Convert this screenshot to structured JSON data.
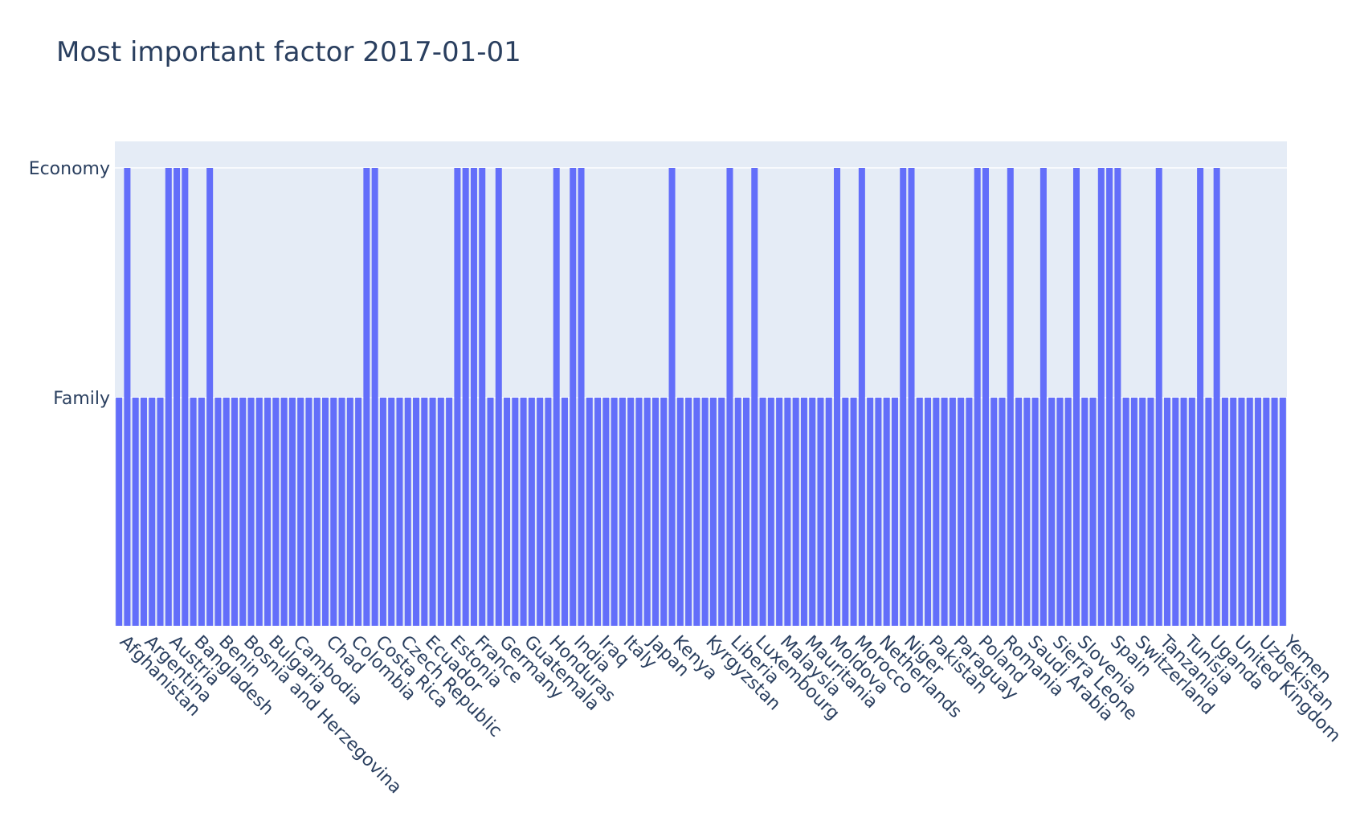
{
  "chart_data": {
    "type": "bar",
    "title": "Most important factor 2017-01-01",
    "xlabel": "",
    "ylabel": "",
    "bar_color": "#636efa",
    "plot_bg": "#e5ecf6",
    "grid": true,
    "y_categories": [
      "Family",
      "Economy"
    ],
    "x_tick_labels": [
      "Afghanistan",
      "Argentina",
      "Austria",
      "Bangladesh",
      "Benin",
      "Bosnia and Herzegovina",
      "Bulgaria",
      "Cambodia",
      "Chad",
      "Colombia",
      "Costa Rica",
      "Czech Republic",
      "Ecuador",
      "Estonia",
      "France",
      "Germany",
      "Guatemala",
      "Honduras",
      "India",
      "Iraq",
      "Italy",
      "Japan",
      "Kenya",
      "Kyrgyzstan",
      "Liberia",
      "Luxembourg",
      "Malaysia",
      "Mauritania",
      "Moldova",
      "Morocco",
      "Netherlands",
      "Niger",
      "Pakistan",
      "Paraguay",
      "Poland",
      "Romania",
      "Saudi Arabia",
      "Sierra Leone",
      "Slovenia",
      "Spain",
      "Switzerland",
      "Tanzania",
      "Tunisia",
      "Uganda",
      "United Kingdom",
      "Uzbekistan",
      "Yemen"
    ],
    "values": [
      "Family",
      "Economy",
      "Family",
      "Family",
      "Family",
      "Family",
      "Economy",
      "Economy",
      "Economy",
      "Family",
      "Family",
      "Economy",
      "Family",
      "Family",
      "Family",
      "Family",
      "Family",
      "Family",
      "Family",
      "Family",
      "Family",
      "Family",
      "Family",
      "Family",
      "Family",
      "Family",
      "Family",
      "Family",
      "Family",
      "Family",
      "Economy",
      "Economy",
      "Family",
      "Family",
      "Family",
      "Family",
      "Family",
      "Family",
      "Family",
      "Family",
      "Family",
      "Economy",
      "Economy",
      "Economy",
      "Economy",
      "Family",
      "Economy",
      "Family",
      "Family",
      "Family",
      "Family",
      "Family",
      "Family",
      "Economy",
      "Family",
      "Economy",
      "Economy",
      "Family",
      "Family",
      "Family",
      "Family",
      "Family",
      "Family",
      "Family",
      "Family",
      "Family",
      "Family",
      "Economy",
      "Family",
      "Family",
      "Family",
      "Family",
      "Family",
      "Family",
      "Economy",
      "Family",
      "Family",
      "Economy",
      "Family",
      "Family",
      "Family",
      "Family",
      "Family",
      "Family",
      "Family",
      "Family",
      "Family",
      "Economy",
      "Family",
      "Family",
      "Economy",
      "Family",
      "Family",
      "Family",
      "Family",
      "Economy",
      "Economy",
      "Family",
      "Family",
      "Family",
      "Family",
      "Family",
      "Family",
      "Family",
      "Economy",
      "Economy",
      "Family",
      "Family",
      "Economy",
      "Family",
      "Family",
      "Family",
      "Economy",
      "Family",
      "Family",
      "Family",
      "Economy",
      "Family",
      "Family",
      "Economy",
      "Economy",
      "Economy",
      "Family",
      "Family",
      "Family",
      "Family",
      "Economy",
      "Family",
      "Family",
      "Family",
      "Family",
      "Economy",
      "Family",
      "Economy",
      "Family",
      "Family",
      "Family",
      "Family",
      "Family",
      "Family",
      "Family",
      "Family"
    ]
  }
}
